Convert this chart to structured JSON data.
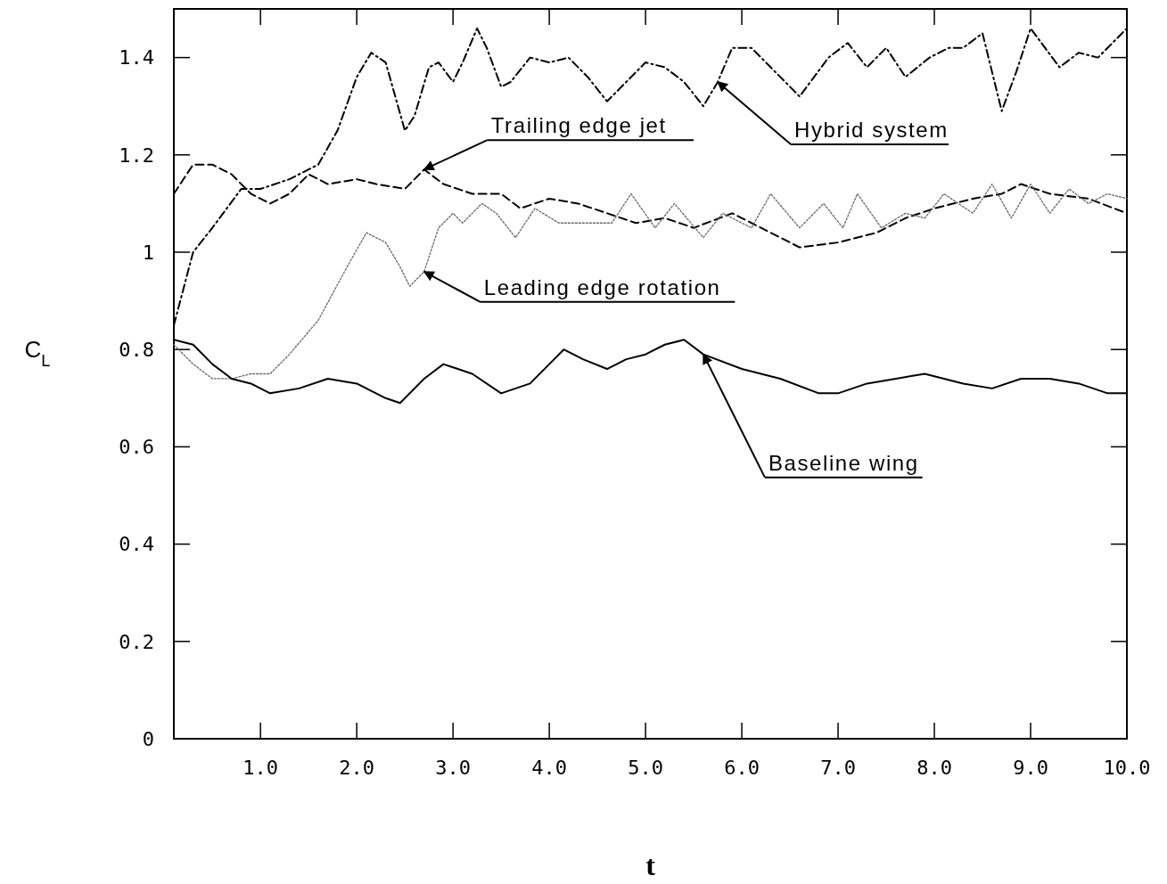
{
  "chart_data": {
    "type": "line",
    "xlabel": "t",
    "ylabel": "C$_{L}$",
    "xlim": [
      0.1,
      10
    ],
    "ylim": [
      0,
      1.5
    ],
    "xticks": [
      {
        "value": 1,
        "label": "1.0"
      },
      {
        "value": 2,
        "label": "2.0"
      },
      {
        "value": 3,
        "label": "3.0"
      },
      {
        "value": 4,
        "label": "4.0"
      },
      {
        "value": 5,
        "label": "5.0"
      },
      {
        "value": 6,
        "label": "6.0"
      },
      {
        "value": 7,
        "label": "7.0"
      },
      {
        "value": 8,
        "label": "8.0"
      },
      {
        "value": 9,
        "label": "9.0"
      },
      {
        "value": 10,
        "label": "10.0"
      }
    ],
    "yticks": [
      0,
      0.2,
      0.4,
      0.6,
      0.8,
      1,
      1.2,
      1.4
    ],
    "grid": false,
    "marker": "none",
    "series": [
      {
        "color": "#000000",
        "line_style": "dashdot",
        "x": [
          0.1,
          0.3,
          0.5,
          0.8,
          1.0,
          1.3,
          1.6,
          1.8,
          2.0,
          2.15,
          2.3,
          2.5,
          2.6,
          2.75,
          2.85,
          3.0,
          3.1,
          3.25,
          3.35,
          3.5,
          3.6,
          3.8,
          4.0,
          4.2,
          4.4,
          4.6,
          4.8,
          5.0,
          5.2,
          5.4,
          5.6,
          5.75,
          5.9,
          6.1,
          6.3,
          6.6,
          6.9,
          7.1,
          7.3,
          7.5,
          7.7,
          7.95,
          8.15,
          8.3,
          8.5,
          8.7,
          8.85,
          9.0,
          9.15,
          9.3,
          9.5,
          9.7,
          10.0
        ],
        "values": [
          0.85,
          1.0,
          1.05,
          1.13,
          1.13,
          1.15,
          1.18,
          1.25,
          1.36,
          1.41,
          1.39,
          1.25,
          1.28,
          1.38,
          1.39,
          1.35,
          1.39,
          1.46,
          1.42,
          1.34,
          1.35,
          1.4,
          1.39,
          1.4,
          1.36,
          1.31,
          1.35,
          1.39,
          1.38,
          1.35,
          1.3,
          1.35,
          1.42,
          1.42,
          1.38,
          1.32,
          1.4,
          1.43,
          1.38,
          1.42,
          1.36,
          1.4,
          1.42,
          1.42,
          1.45,
          1.29,
          1.37,
          1.46,
          1.42,
          1.38,
          1.41,
          1.4,
          1.46
        ]
      },
      {
        "color": "#000000",
        "line_style": "dashed",
        "x": [
          0.1,
          0.3,
          0.5,
          0.7,
          0.9,
          1.1,
          1.3,
          1.5,
          1.7,
          2.0,
          2.2,
          2.5,
          2.7,
          2.9,
          3.2,
          3.5,
          3.7,
          4.0,
          4.3,
          4.6,
          4.9,
          5.2,
          5.5,
          5.9,
          6.2,
          6.6,
          7.0,
          7.4,
          7.7,
          8.0,
          8.4,
          8.7,
          8.9,
          9.2,
          9.6,
          10.0
        ],
        "values": [
          1.12,
          1.18,
          1.18,
          1.16,
          1.12,
          1.1,
          1.12,
          1.16,
          1.14,
          1.15,
          1.14,
          1.13,
          1.17,
          1.14,
          1.12,
          1.12,
          1.09,
          1.11,
          1.1,
          1.08,
          1.06,
          1.07,
          1.05,
          1.08,
          1.05,
          1.01,
          1.02,
          1.04,
          1.07,
          1.09,
          1.11,
          1.12,
          1.14,
          1.12,
          1.11,
          1.08
        ]
      },
      {
        "color": "#666666",
        "line_style": "dotted",
        "x": [
          0.1,
          0.3,
          0.5,
          0.7,
          0.9,
          1.1,
          1.3,
          1.6,
          1.9,
          2.1,
          2.3,
          2.45,
          2.55,
          2.7,
          2.85,
          3.0,
          3.1,
          3.3,
          3.45,
          3.65,
          3.85,
          4.1,
          4.4,
          4.65,
          4.85,
          5.1,
          5.3,
          5.6,
          5.8,
          6.1,
          6.3,
          6.6,
          6.85,
          7.05,
          7.2,
          7.45,
          7.7,
          7.9,
          8.1,
          8.4,
          8.6,
          8.8,
          9.0,
          9.2,
          9.4,
          9.6,
          9.8,
          10.0
        ],
        "values": [
          0.81,
          0.77,
          0.74,
          0.74,
          0.75,
          0.75,
          0.79,
          0.86,
          0.97,
          1.04,
          1.02,
          0.97,
          0.93,
          0.96,
          1.05,
          1.08,
          1.06,
          1.1,
          1.08,
          1.03,
          1.09,
          1.06,
          1.06,
          1.06,
          1.12,
          1.05,
          1.1,
          1.03,
          1.08,
          1.05,
          1.12,
          1.05,
          1.1,
          1.05,
          1.12,
          1.05,
          1.08,
          1.07,
          1.12,
          1.08,
          1.14,
          1.07,
          1.14,
          1.08,
          1.13,
          1.1,
          1.12,
          1.11
        ]
      },
      {
        "color": "#000000",
        "line_style": "solid",
        "x": [
          0.1,
          0.3,
          0.5,
          0.7,
          0.9,
          1.1,
          1.4,
          1.7,
          2.0,
          2.3,
          2.45,
          2.7,
          2.9,
          3.2,
          3.5,
          3.8,
          4.0,
          4.15,
          4.35,
          4.6,
          4.8,
          5.0,
          5.2,
          5.4,
          5.6,
          6.0,
          6.4,
          6.8,
          7.0,
          7.3,
          7.6,
          7.9,
          8.3,
          8.6,
          8.9,
          9.2,
          9.5,
          9.8,
          10.0
        ],
        "values": [
          0.82,
          0.81,
          0.77,
          0.74,
          0.73,
          0.71,
          0.72,
          0.74,
          0.73,
          0.7,
          0.69,
          0.74,
          0.77,
          0.75,
          0.71,
          0.73,
          0.77,
          0.8,
          0.78,
          0.76,
          0.78,
          0.79,
          0.81,
          0.82,
          0.79,
          0.76,
          0.74,
          0.71,
          0.71,
          0.73,
          0.74,
          0.75,
          0.73,
          0.72,
          0.74,
          0.74,
          0.73,
          0.71,
          0.71
        ]
      }
    ],
    "annotations": [
      {
        "text": "Trailing edge jet",
        "x": 2.7,
        "y": 1.17
      },
      {
        "text": "Hybrid system",
        "x": 5.75,
        "y": 1.35
      },
      {
        "text": "Leading edge rotation",
        "x": 2.7,
        "y": 0.96
      },
      {
        "text": "Baseline wing",
        "x": 5.6,
        "y": 0.79
      }
    ]
  }
}
